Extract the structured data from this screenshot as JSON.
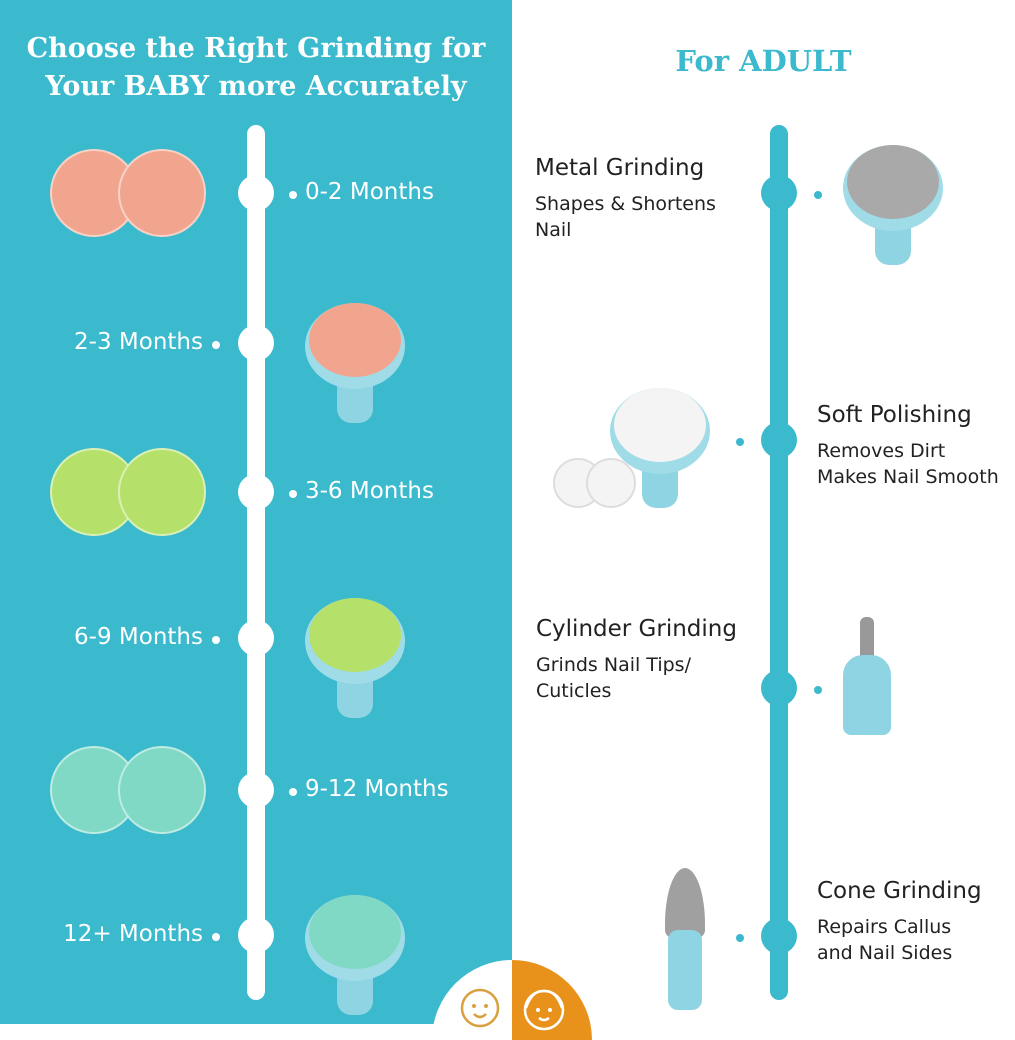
{
  "baby": {
    "title_line1": "Choose the Right Grinding for",
    "title_line2": "Your BABY more Accurately",
    "stages": [
      {
        "label": "0-2 Months",
        "color": "#f2a58e"
      },
      {
        "label": "2-3 Months",
        "color": "#f2a58e"
      },
      {
        "label": "3-6 Months",
        "color": "#b5e06a"
      },
      {
        "label": "6-9 Months",
        "color": "#b5e06a"
      },
      {
        "label": "9-12 Months",
        "color": "#7fd9c4"
      },
      {
        "label": "12+ Months",
        "color": "#7fd9c4"
      }
    ]
  },
  "adult": {
    "title": "For ADULT",
    "items": [
      {
        "name": "Metal Grinding",
        "desc": "Shapes & Shortens\nNail"
      },
      {
        "name": "Soft Polishing",
        "desc": "Removes Dirt\nMakes Nail Smooth"
      },
      {
        "name": "Cylinder Grinding",
        "desc": "Grinds Nail Tips/\nCuticles"
      },
      {
        "name": "Cone Grinding",
        "desc": "Repairs Callus\nand Nail Sides"
      }
    ]
  },
  "colors": {
    "teal": "#3bb9cd",
    "orange": "#e8921c"
  },
  "icons": [
    "baby-face-icon",
    "adult-face-icon"
  ]
}
